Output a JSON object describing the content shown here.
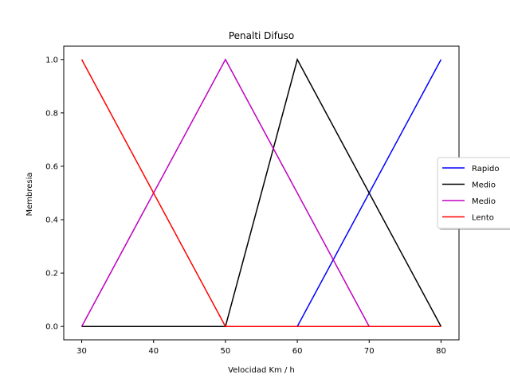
{
  "chart_data": {
    "type": "line",
    "title": "Penalti Difuso",
    "xlabel": "Velocidad Km / h",
    "ylabel": "Membresia",
    "xlim": [
      27.5,
      82.5
    ],
    "ylim": [
      -0.05,
      1.05
    ],
    "xticks": [
      30,
      40,
      50,
      60,
      70,
      80
    ],
    "yticks": [
      0.0,
      0.2,
      0.4,
      0.6,
      0.8,
      1.0
    ],
    "ytick_labels": [
      "0.0",
      "0.2",
      "0.4",
      "0.6",
      "0.8",
      "1.0"
    ],
    "grid": false,
    "legend_position": "right, partially outside the axes",
    "series": [
      {
        "name": "Rapido",
        "color": "#0000ff",
        "x": [
          30,
          60,
          80
        ],
        "y": [
          0,
          0,
          1
        ]
      },
      {
        "name": "Medio",
        "color": "#000000",
        "x": [
          30,
          50,
          60,
          80
        ],
        "y": [
          0,
          0,
          1,
          0
        ]
      },
      {
        "name": "Medio",
        "color": "#bf00bf",
        "x": [
          30,
          50,
          70,
          80
        ],
        "y": [
          0,
          1,
          0,
          0
        ]
      },
      {
        "name": "Lento",
        "color": "#ff0000",
        "x": [
          30,
          50,
          80
        ],
        "y": [
          1,
          0,
          0
        ]
      }
    ]
  }
}
